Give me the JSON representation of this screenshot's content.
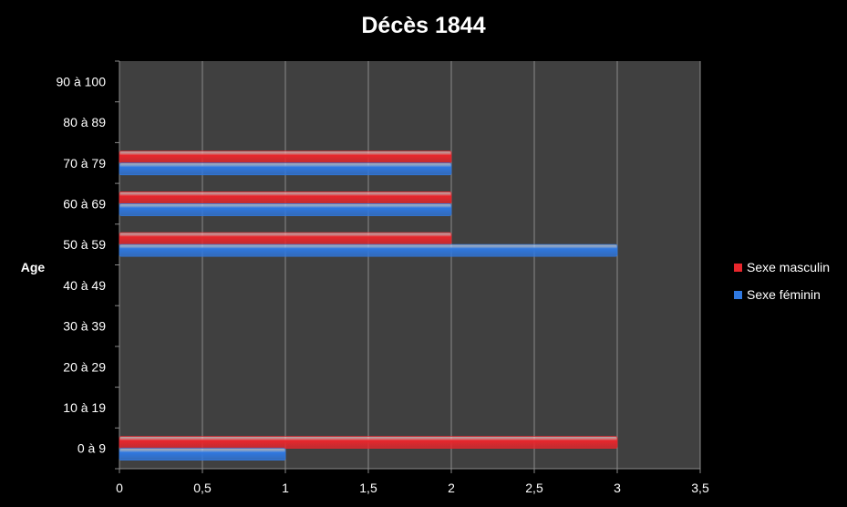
{
  "chart_data": {
    "type": "bar",
    "orientation": "horizontal",
    "title": "Décès 1844",
    "ylabel": "Age",
    "xlabel": "",
    "categories": [
      "0 à 9",
      "10 à 19",
      "20 à 29",
      "30 à 39",
      "40 à 49",
      "50 à 59",
      "60 à 69",
      "70 à 79",
      "80 à 89",
      "90 à 100"
    ],
    "series": [
      {
        "name": "Sexe masculin",
        "color": "#e8262c",
        "values": [
          3,
          0,
          0,
          0,
          0,
          2,
          2,
          2,
          0,
          0
        ]
      },
      {
        "name": "Sexe féminin",
        "color": "#2f78e0",
        "values": [
          1,
          0,
          0,
          0,
          0,
          3,
          2,
          2,
          0,
          0
        ]
      }
    ],
    "xlim": [
      0,
      3.5
    ],
    "xticks": [
      "0",
      "0,5",
      "1",
      "1,5",
      "2",
      "2,5",
      "3",
      "3,5"
    ],
    "grid": true,
    "legend_position": "right",
    "plot_background": "#404040",
    "background": "#000000"
  }
}
